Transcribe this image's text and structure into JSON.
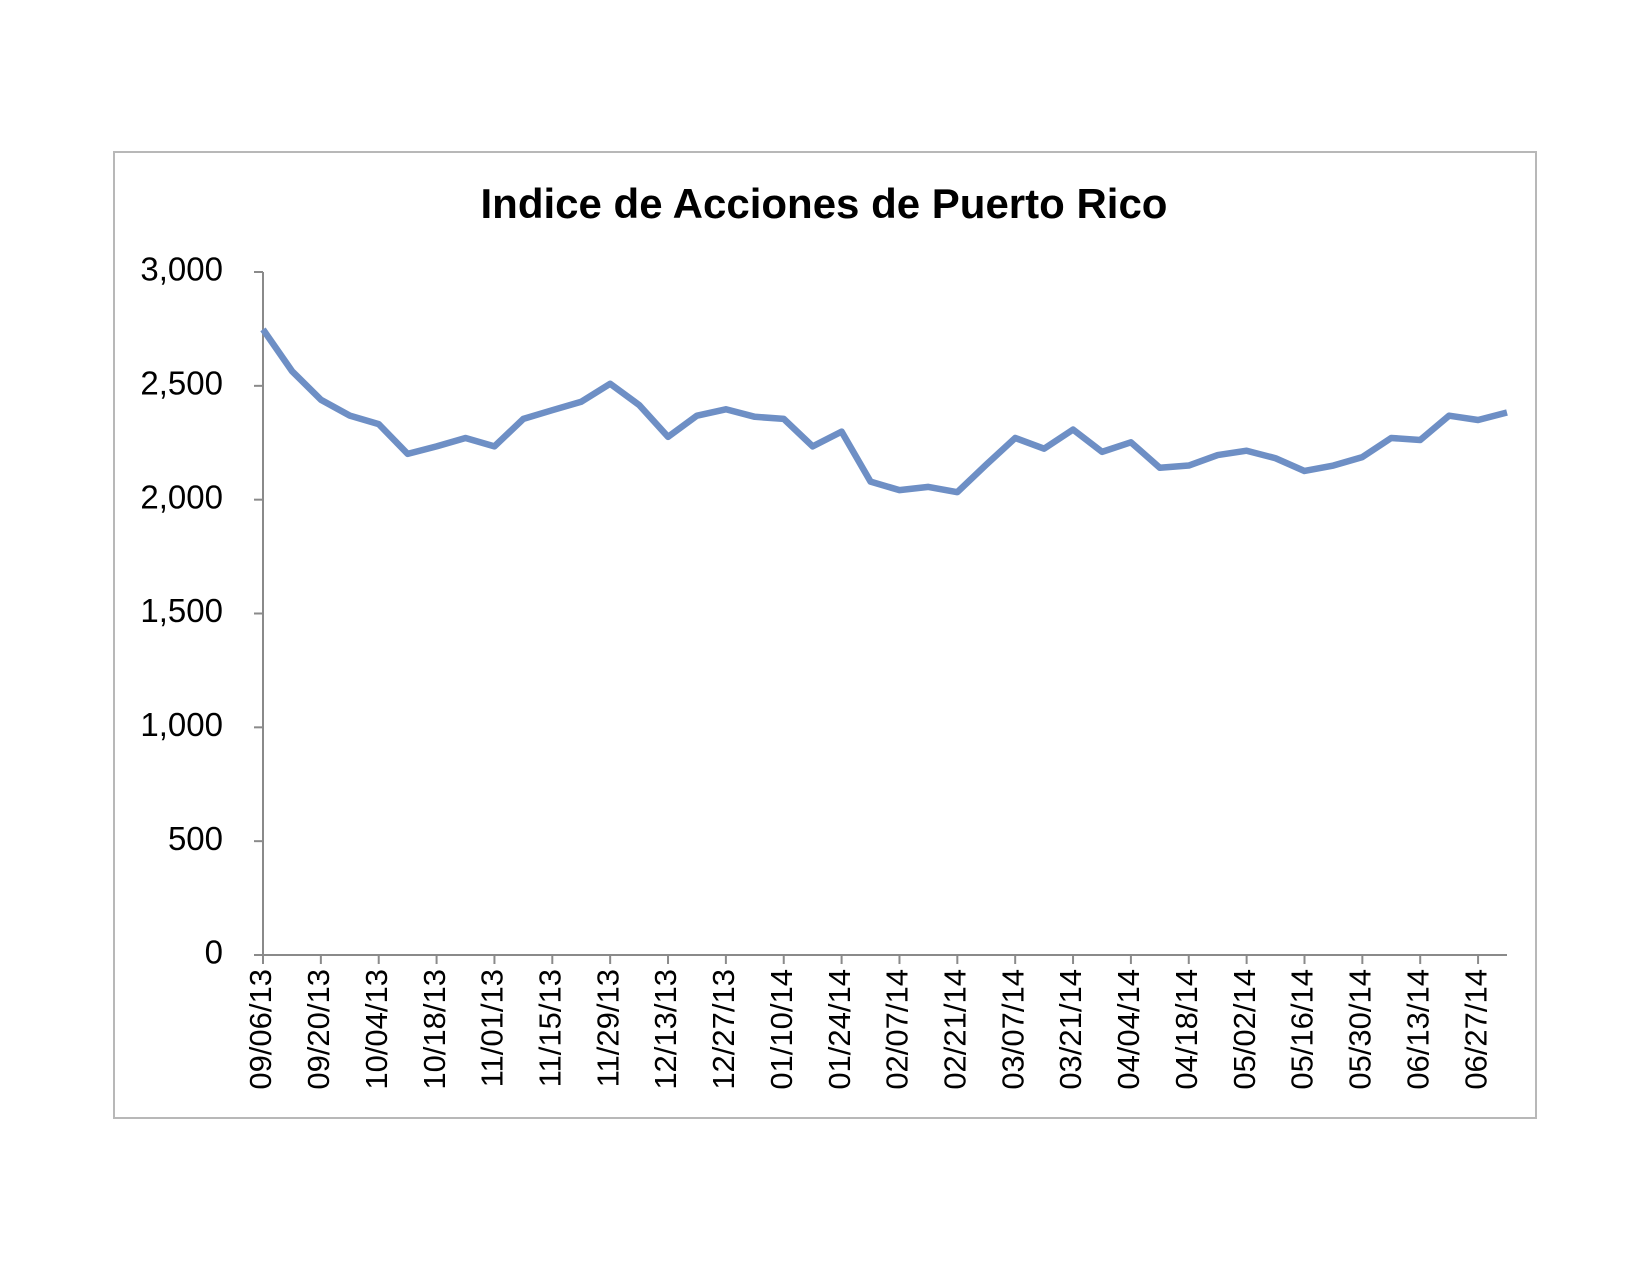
{
  "chart_data": {
    "type": "line",
    "title": "Indice de Acciones de Puerto Rico",
    "categories": [
      "09/06/13",
      null,
      "09/20/13",
      null,
      "10/04/13",
      null,
      "10/18/13",
      null,
      "11/01/13",
      null,
      "11/15/13",
      null,
      "11/29/13",
      null,
      "12/13/13",
      null,
      "12/27/13",
      null,
      "01/10/14",
      null,
      "01/24/14",
      null,
      "02/07/14",
      null,
      "02/21/14",
      null,
      "03/07/14",
      null,
      "03/21/14",
      null,
      "04/04/14",
      null,
      "04/18/14",
      null,
      "05/02/14",
      null,
      "05/16/14",
      null,
      "05/30/14",
      null,
      "06/13/14",
      null,
      "06/27/14",
      null
    ],
    "series": [
      {
        "name": "Indice",
        "color": "#6e8fc5",
        "values": [
          2748,
          2565,
          2439,
          2369,
          2332,
          2201,
          2234,
          2271,
          2234,
          2355,
          2393,
          2430,
          2509,
          2416,
          2276,
          2369,
          2397,
          2364,
          2355,
          2234,
          2299,
          2079,
          2042,
          2056,
          2033,
          2154,
          2271,
          2224,
          2308,
          2210,
          2252,
          2140,
          2150,
          2196,
          2215,
          2182,
          2126,
          2150,
          2187,
          2271,
          2262,
          2369,
          2350,
          2383
        ]
      }
    ],
    "ylim": [
      0,
      3000
    ],
    "yticks": [
      0,
      500,
      {
        "value": 1000,
        "label": "1,000"
      },
      {
        "value": 1500,
        "label": "1,500"
      },
      {
        "value": 2000,
        "label": "2,000"
      },
      {
        "value": 2500,
        "label": "2,500"
      },
      {
        "value": 3000,
        "label": "3,000"
      }
    ],
    "grid": false
  }
}
